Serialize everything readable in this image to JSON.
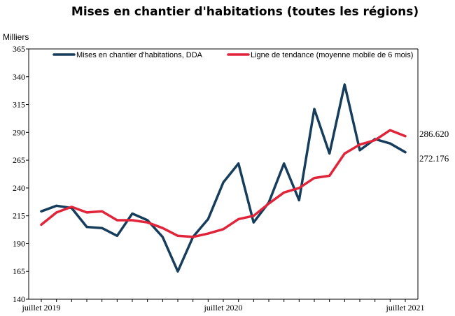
{
  "chart_data": {
    "type": "line",
    "title": "Mises en chantier d'habitations (toutes les régions)",
    "ylabel": "Milliers",
    "xlabel": "",
    "ylim": [
      140,
      365
    ],
    "yticks": [
      140,
      165,
      190,
      215,
      240,
      265,
      290,
      315,
      340,
      365
    ],
    "x": [
      "2019-07",
      "2019-08",
      "2019-09",
      "2019-10",
      "2019-11",
      "2019-12",
      "2020-01",
      "2020-02",
      "2020-03",
      "2020-04",
      "2020-05",
      "2020-06",
      "2020-07",
      "2020-08",
      "2020-09",
      "2020-10",
      "2020-11",
      "2020-12",
      "2021-01",
      "2021-02",
      "2021-03",
      "2021-04",
      "2021-05",
      "2021-06",
      "2021-07"
    ],
    "xtick_labels": [
      {
        "index": 0,
        "label": "juillet 2019"
      },
      {
        "index": 12,
        "label": "juillet 2020"
      },
      {
        "index": 24,
        "label": "juillet 2021"
      }
    ],
    "series": [
      {
        "name": "Mises en chantier d'habitations, DDA",
        "color": "#173d5c",
        "values": [
          219,
          224,
          222,
          205,
          204,
          197,
          217,
          211,
          196,
          165,
          196,
          212,
          245,
          262,
          209,
          227,
          262,
          229,
          311,
          271,
          333,
          274,
          284,
          280,
          272.176
        ]
      },
      {
        "name": "Ligne de tendance (moyenne mobile de 6 mois)",
        "color": "#e0243a",
        "values": [
          207,
          218,
          223,
          218,
          219,
          211,
          211,
          209,
          204,
          197,
          196,
          199,
          203,
          212,
          215,
          226,
          236,
          240,
          249,
          251,
          271,
          279,
          283,
          292,
          286.62
        ]
      }
    ],
    "end_labels": [
      "286.620",
      "272.176"
    ],
    "legend_placement": "top"
  }
}
